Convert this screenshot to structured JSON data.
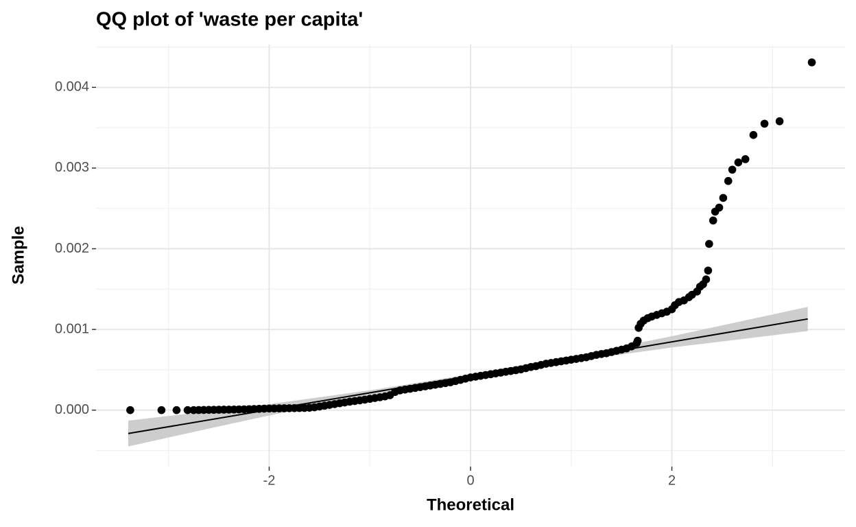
{
  "chart_data": {
    "type": "scatter",
    "title": "QQ plot of 'waste per capita'",
    "x_label": "Theoretical",
    "y_label": "Sample",
    "color": "#000000",
    "xlim": [
      -3.72,
      3.72
    ],
    "ylim": [
      -0.0007,
      0.00453
    ],
    "xticks": [
      -2,
      0,
      2
    ],
    "yticks": [
      {
        "value": 0,
        "label": "0.000"
      },
      0.001,
      0.002,
      0.003,
      0.004
    ],
    "grid": true,
    "x": [
      -3.38,
      -3.07,
      -2.92,
      -2.81,
      -2.75,
      -2.7,
      -2.65,
      -2.6,
      -2.55,
      -2.5,
      -2.45,
      -2.4,
      -2.35,
      -2.3,
      -2.25,
      -2.2,
      -2.15,
      -2.1,
      -2.05,
      -2.0,
      -1.95,
      -1.9,
      -1.85,
      -1.8,
      -1.75,
      -1.7,
      -1.65,
      -1.6,
      -1.55,
      -1.5,
      -1.45,
      -1.4,
      -1.35,
      -1.3,
      -1.25,
      -1.2,
      -1.15,
      -1.1,
      -1.05,
      -1.0,
      -0.95,
      -0.9,
      -0.85,
      -0.8,
      -0.75,
      -0.7,
      -0.65,
      -0.6,
      -0.55,
      -0.5,
      -0.45,
      -0.4,
      -0.35,
      -0.3,
      -0.25,
      -0.2,
      -0.15,
      -0.1,
      -0.05,
      0,
      0.05,
      0.1,
      0.15,
      0.2,
      0.25,
      0.3,
      0.35,
      0.4,
      0.45,
      0.5,
      0.55,
      0.6,
      0.65,
      0.7,
      0.75,
      0.8,
      0.85,
      0.9,
      0.95,
      1.0,
      1.05,
      1.1,
      1.15,
      1.2,
      1.25,
      1.3,
      1.35,
      1.4,
      1.45,
      1.5,
      1.55,
      1.6,
      1.65,
      1.66,
      1.67,
      1.69,
      1.72,
      1.76,
      1.8,
      1.85,
      1.9,
      1.95,
      2.0,
      2.03,
      2.07,
      2.12,
      2.17,
      2.2,
      2.25,
      2.28,
      2.31,
      2.34,
      2.36,
      2.37,
      2.41,
      2.43,
      2.47,
      2.51,
      2.56,
      2.6,
      2.66,
      2.73,
      2.81,
      2.92,
      3.07,
      3.39
    ],
    "values": [
      0,
      0,
      0,
      0,
      0,
      1e-06,
      2e-06,
      3e-06,
      4e-06,
      5e-06,
      6e-06,
      7e-06,
      8e-06,
      9e-06,
      1e-05,
      1.2e-05,
      1.4e-05,
      1.6e-05,
      1.8e-05,
      2e-05,
      2.1e-05,
      2.2e-05,
      2.3e-05,
      2.4e-05,
      2.5e-05,
      2.6e-05,
      2.7e-05,
      3e-05,
      3.5e-05,
      4.5e-05,
      5.5e-05,
      6.5e-05,
      7.5e-05,
      8.5e-05,
      9.5e-05,
      0.000105,
      0.000113,
      0.000121,
      0.00013,
      0.00014,
      0.00015,
      0.00016,
      0.00017,
      0.000185,
      0.000225,
      0.000245,
      0.000255,
      0.000265,
      0.000275,
      0.000285,
      0.000295,
      0.000305,
      0.000315,
      0.000325,
      0.000335,
      0.000345,
      0.00036,
      0.000375,
      0.00039,
      0.000405,
      0.000415,
      0.000425,
      0.000435,
      0.000445,
      0.000455,
      0.000465,
      0.000475,
      0.000485,
      0.000495,
      0.000505,
      0.00052,
      0.000535,
      0.000545,
      0.00056,
      0.000575,
      0.000585,
      0.000595,
      0.000605,
      0.000615,
      0.000625,
      0.000635,
      0.000645,
      0.000655,
      0.00067,
      0.000685,
      0.000695,
      0.000705,
      0.00072,
      0.000735,
      0.00075,
      0.000765,
      0.00079,
      0.00083,
      0.00086,
      0.00102,
      0.00107,
      0.00111,
      0.00114,
      0.00116,
      0.00118,
      0.0012,
      0.00122,
      0.00125,
      0.0013,
      0.00134,
      0.00136,
      0.0014,
      0.00143,
      0.00147,
      0.00153,
      0.00156,
      0.00162,
      0.00173,
      0.00206,
      0.00235,
      0.00246,
      0.00251,
      0.00263,
      0.00284,
      0.00298,
      0.00307,
      0.00311,
      0.00341,
      0.00355,
      0.00358,
      0.00431
    ],
    "reference_line": {
      "color": "#000000",
      "x": [
        -3.4,
        3.35
      ],
      "y": [
        -0.00029,
        0.00113
      ]
    },
    "band": {
      "color": "#c8c8c8",
      "x": [
        -3.4,
        -2.5,
        -2,
        -1,
        0,
        1,
        2,
        2.5,
        3.35
      ],
      "lower": [
        -0.00045,
        -0.000201,
        -6.6e-05,
        0.000185,
        0.000405,
        0.000605,
        0.000776,
        0.000851,
        0.00098
      ],
      "upper": [
        -0.00013,
        -1e-06,
        7.4e-05,
        0.000245,
        0.000445,
        0.000665,
        0.000916,
        0.001051,
        0.00128
      ]
    }
  }
}
